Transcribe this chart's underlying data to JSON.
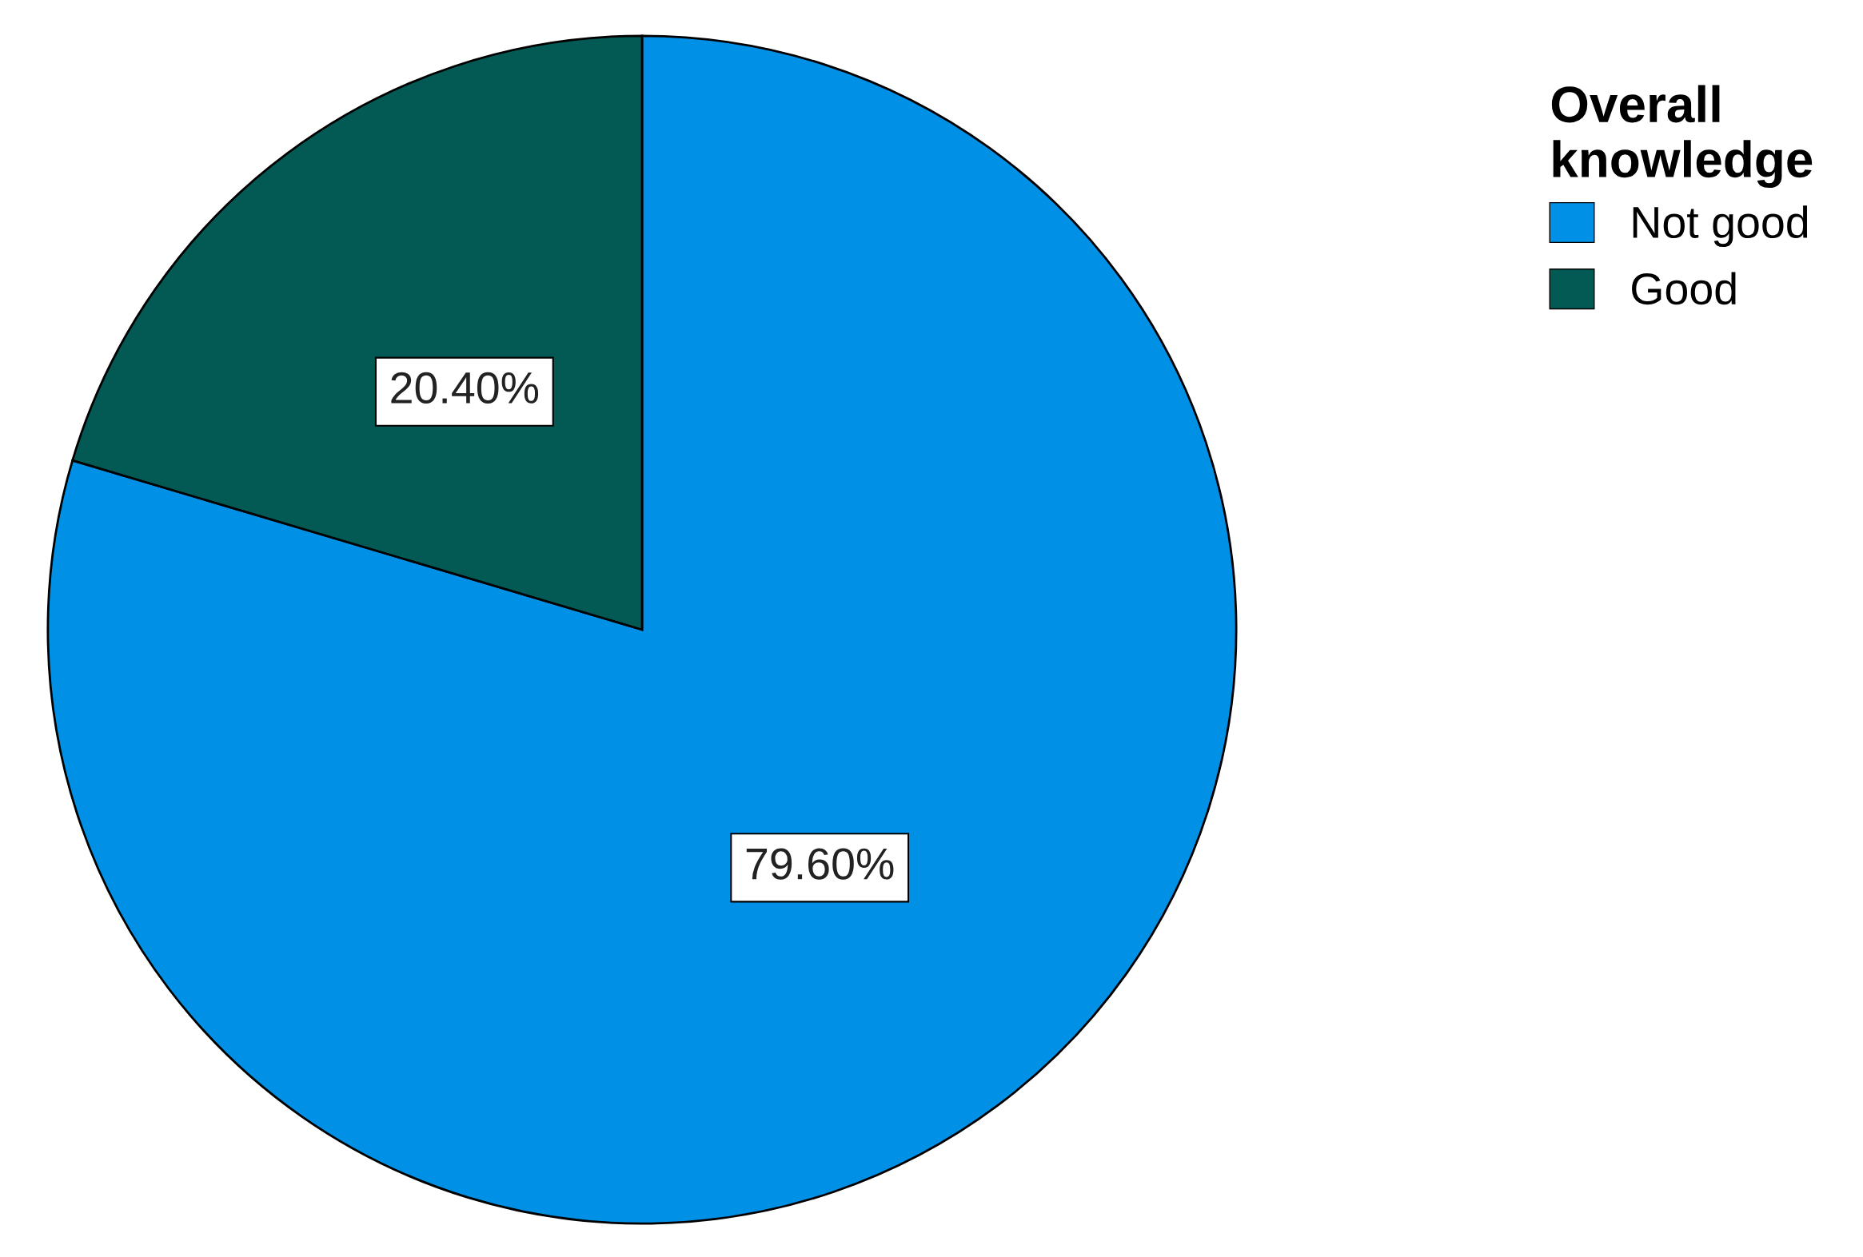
{
  "chart_data": {
    "type": "pie",
    "legend_title": "Overall knowledge",
    "categories": [
      "Not good",
      "Good"
    ],
    "values": [
      79.6,
      20.4
    ],
    "colors": [
      "#0091e6",
      "#035a55"
    ],
    "value_labels": [
      "79.60%",
      "20.40%"
    ],
    "legend": "top right"
  }
}
